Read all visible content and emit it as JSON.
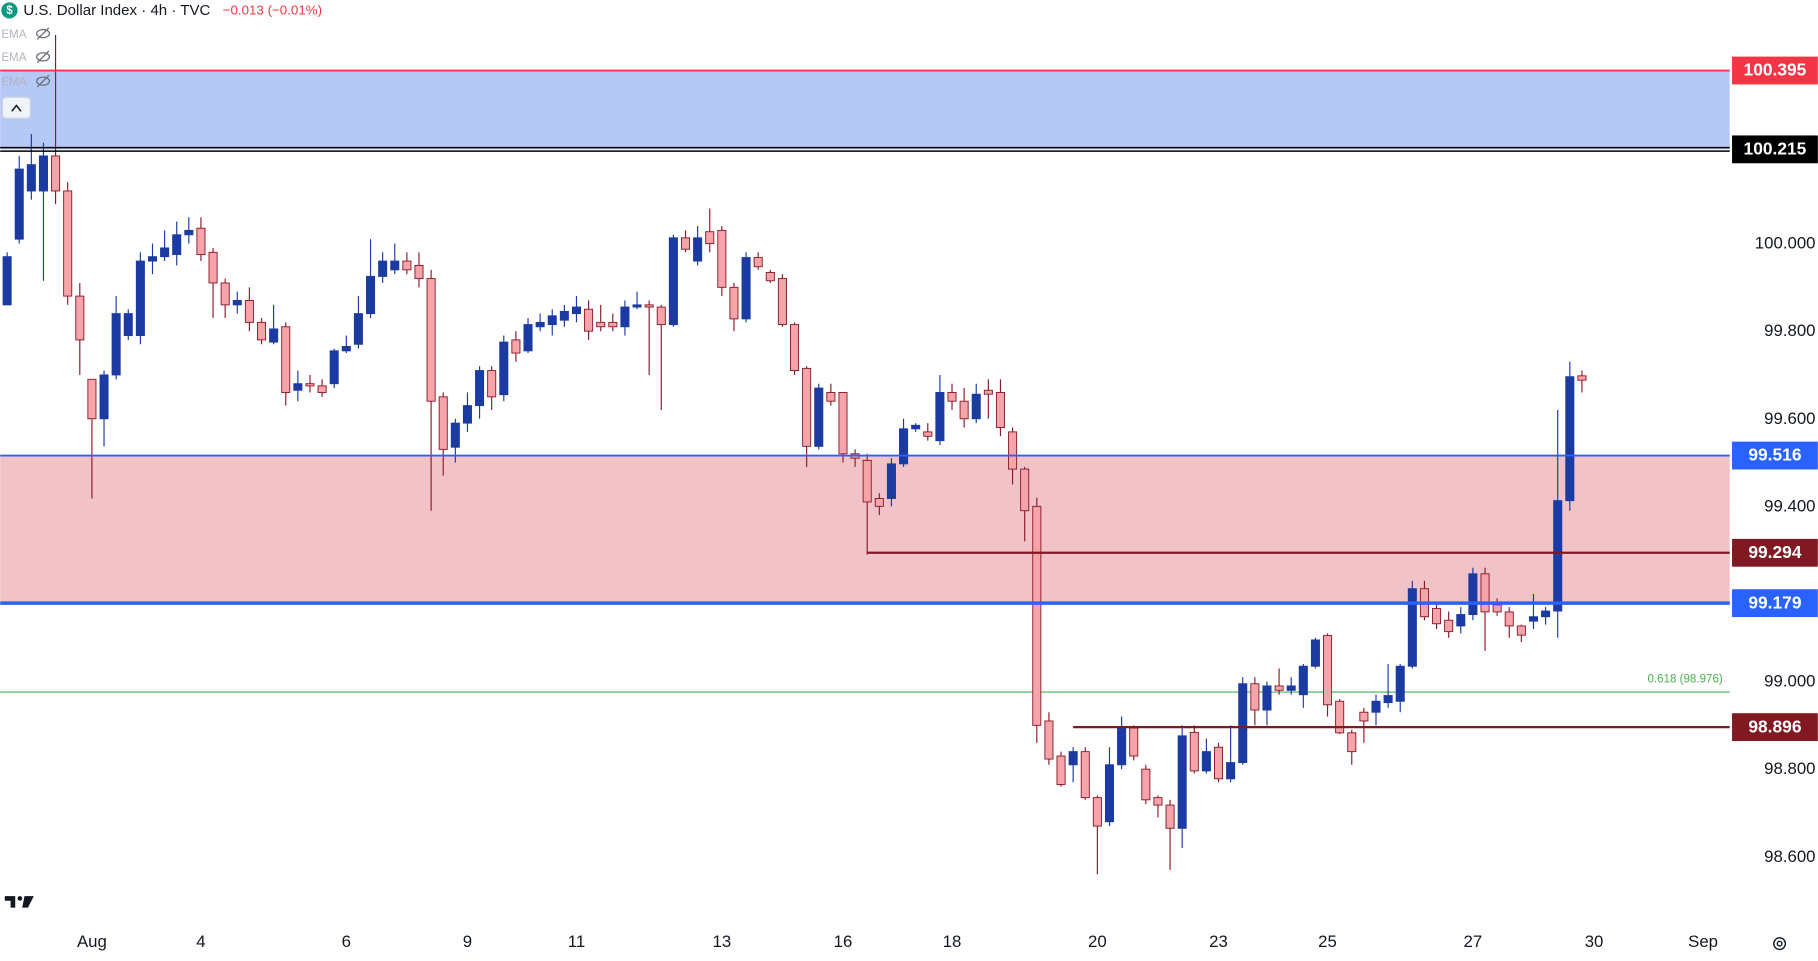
{
  "chart_data": {
    "type": "candlestick",
    "title": "U.S. Dollar Index · 4h · TVC",
    "symbol_icon": "$",
    "change": "−0.013 (−0.01%)",
    "indicators": [
      "EMA",
      "EMA",
      "EMA"
    ],
    "up_color": "#1b3ba3",
    "down_color": "#f5a5aa",
    "down_border": "#8b1a2b",
    "grid": false,
    "ylim": [
      98.452,
      100.556
    ],
    "yticks": [
      {
        "value": 98.6,
        "label": "98.600"
      },
      {
        "value": 98.8,
        "label": "98.800"
      },
      {
        "value": 99.0,
        "label": "99.000"
      },
      {
        "value": 99.4,
        "label": "99.400"
      },
      {
        "value": 99.6,
        "label": "99.600"
      },
      {
        "value": 99.8,
        "label": "99.800"
      },
      {
        "value": 100.0,
        "label": "100.000"
      }
    ],
    "zones": [
      {
        "low": 100.215,
        "high": 100.395,
        "color": "#b1c5f5"
      },
      {
        "low": 99.179,
        "high": 99.516,
        "color": "#f0bfc4"
      }
    ],
    "levels": [
      {
        "value": 100.395,
        "color": "#f23645"
      },
      {
        "value": 100.215,
        "color": "#000000"
      },
      {
        "value": 99.516,
        "color": "#2962ff"
      },
      {
        "value": 99.294,
        "color": "#801922"
      },
      {
        "value": 99.179,
        "color": "#2962ff"
      },
      {
        "value": 98.896,
        "color": "#801922"
      }
    ],
    "fib": {
      "value": 98.976,
      "label": "0.618 (98.976)",
      "color": "#4caf50"
    },
    "categories": [
      null,
      null,
      null,
      null,
      null,
      null,
      null,
      "Aug",
      null,
      null,
      null,
      null,
      null,
      null,
      null,
      null,
      "4",
      null,
      null,
      null,
      null,
      null,
      null,
      null,
      null,
      null,
      null,
      null,
      "6",
      null,
      null,
      null,
      null,
      null,
      null,
      null,
      null,
      null,
      "9",
      null,
      null,
      null,
      null,
      null,
      null,
      null,
      null,
      "11",
      null,
      null,
      null,
      null,
      null,
      null,
      null,
      null,
      null,
      null,
      null,
      "13",
      null,
      null,
      null,
      null,
      null,
      null,
      null,
      null,
      null,
      "16",
      null,
      null,
      null,
      null,
      null,
      null,
      null,
      null,
      "18",
      null,
      null,
      null,
      null,
      null,
      null,
      null,
      null,
      null,
      null,
      null,
      "20",
      null,
      null,
      null,
      null,
      null,
      null,
      null,
      null,
      null,
      "23",
      null,
      null,
      null,
      null,
      null,
      null,
      null,
      null,
      "25",
      null,
      null,
      null,
      null,
      null,
      null,
      null,
      null,
      null,
      null,
      null,
      "27",
      null,
      null,
      null,
      null,
      null,
      null,
      null,
      null,
      null,
      "30",
      null,
      null,
      null,
      null,
      null,
      null,
      null,
      null,
      "Sep"
    ],
    "open": [
      99.86,
      100.01,
      100.12,
      100.12,
      100.2,
      100.12,
      99.88,
      99.69,
      99.6,
      99.7,
      99.79,
      99.79,
      99.96,
      99.97,
      99.975,
      100.02,
      100.035,
      99.98,
      99.91,
      99.86,
      99.87,
      99.82,
      99.775,
      99.81,
      99.665,
      99.68,
      99.675,
      99.68,
      99.755,
      99.77,
      99.84,
      99.925,
      99.94,
      99.96,
      99.95,
      99.92,
      99.65,
      99.535,
      99.59,
      99.63,
      99.71,
      99.655,
      99.78,
      99.755,
      99.81,
      99.815,
      99.825,
      99.84,
      99.85,
      99.82,
      99.82,
      99.81,
      99.855,
      99.86,
      99.855,
      99.815,
      100.013,
      99.96,
      100.027,
      100.03,
      99.9,
      99.828,
      99.968,
      99.934,
      99.92,
      99.815,
      99.715,
      99.537,
      99.66,
      99.66,
      99.52,
      99.505,
      99.418,
      99.418,
      99.497,
      99.577,
      99.57,
      99.55,
      99.66,
      99.64,
      99.6,
      99.665,
      99.66,
      99.57,
      99.485,
      99.4,
      98.91,
      98.83,
      98.81,
      98.84,
      98.735,
      98.68,
      98.81,
      98.894,
      98.8,
      98.735,
      98.718,
      98.665,
      98.884,
      98.796,
      98.85,
      98.778,
      98.815,
      98.995,
      98.935,
      98.99,
      98.98,
      98.97,
      99.035,
      99.105,
      98.955,
      98.883,
      98.93,
      98.93,
      98.952,
      98.955,
      99.035,
      99.212,
      99.167,
      99.14,
      99.127,
      99.153,
      99.246,
      99.175,
      99.159,
      99.127,
      99.138,
      99.148,
      99.161,
      99.413,
      99.698,
      null,
      null,
      null,
      null,
      null,
      null,
      null,
      null,
      null,
      null
    ],
    "high": [
      99.98,
      100.2,
      100.25,
      100.23,
      100.476,
      100.14,
      99.91,
      99.69,
      99.71,
      99.88,
      99.85,
      99.98,
      100.0,
      100.03,
      100.05,
      100.06,
      100.06,
      99.99,
      99.92,
      99.89,
      99.9,
      99.83,
      99.86,
      99.82,
      99.71,
      99.7,
      99.69,
      99.76,
      99.79,
      99.88,
      100.01,
      99.98,
      100.0,
      99.98,
      99.98,
      99.94,
      99.66,
      99.6,
      99.66,
      99.72,
      99.72,
      99.79,
      99.8,
      99.83,
      99.84,
      99.85,
      99.86,
      99.88,
      99.87,
      99.86,
      99.84,
      99.87,
      99.89,
      99.87,
      99.86,
      100.02,
      100.03,
      100.04,
      100.08,
      100.04,
      99.91,
      99.98,
      99.98,
      99.94,
      99.93,
      99.82,
      99.72,
      99.68,
      99.68,
      99.66,
      99.53,
      99.52,
      99.43,
      99.51,
      99.6,
      99.59,
      99.59,
      99.7,
      99.68,
      99.67,
      99.68,
      99.69,
      99.69,
      99.58,
      99.49,
      99.42,
      98.93,
      98.84,
      98.85,
      98.85,
      98.74,
      98.85,
      98.92,
      98.9,
      98.81,
      98.74,
      98.73,
      98.9,
      98.9,
      98.87,
      98.86,
      98.9,
      99.01,
      99.01,
      99.0,
      99.03,
      99.01,
      99.04,
      99.1,
      99.11,
      98.96,
      98.89,
      98.94,
      98.97,
      99.04,
      99.04,
      99.23,
      99.23,
      99.18,
      99.16,
      99.17,
      99.26,
      99.26,
      99.19,
      99.17,
      99.13,
      99.2,
      99.17,
      99.62,
      99.73,
      99.71,
      null,
      null,
      null,
      null,
      null,
      null,
      null,
      null,
      null,
      null
    ],
    "low": [
      99.86,
      100.0,
      100.1,
      99.915,
      100.09,
      99.86,
      99.7,
      99.418,
      99.537,
      99.69,
      99.78,
      99.77,
      99.93,
      99.96,
      99.95,
      100.0,
      99.96,
      99.83,
      99.83,
      99.84,
      99.8,
      99.77,
      99.77,
      99.63,
      99.64,
      99.66,
      99.65,
      99.67,
      99.75,
      99.76,
      99.83,
      99.91,
      99.93,
      99.93,
      99.9,
      99.39,
      99.47,
      99.5,
      99.57,
      99.6,
      99.62,
      99.64,
      99.73,
      99.75,
      99.8,
      99.79,
      99.81,
      99.82,
      99.78,
      99.8,
      99.8,
      99.79,
      99.85,
      99.7,
      99.62,
      99.81,
      99.98,
      99.95,
      99.98,
      99.88,
      99.8,
      99.82,
      99.94,
      99.91,
      99.81,
      99.7,
      99.49,
      99.53,
      99.63,
      99.5,
      99.49,
      99.29,
      99.38,
      99.4,
      99.49,
      99.57,
      99.55,
      99.54,
      99.62,
      99.58,
      99.59,
      99.6,
      99.56,
      99.45,
      99.32,
      98.86,
      98.81,
      98.76,
      98.77,
      98.73,
      98.56,
      98.67,
      98.8,
      98.82,
      98.72,
      98.69,
      98.57,
      98.62,
      98.79,
      98.79,
      98.77,
      98.77,
      98.81,
      98.9,
      98.9,
      98.97,
      98.97,
      98.94,
      99.03,
      98.92,
      98.88,
      98.81,
      98.86,
      98.9,
      98.94,
      98.93,
      99.03,
      99.14,
      99.12,
      99.1,
      99.11,
      99.14,
      99.07,
      99.15,
      99.1,
      99.09,
      99.12,
      99.13,
      99.1,
      99.39,
      99.66,
      null,
      null,
      null,
      null,
      null,
      null,
      null,
      null,
      null,
      null
    ],
    "close": [
      99.97,
      100.17,
      100.18,
      100.2,
      100.12,
      99.88,
      99.78,
      99.6,
      99.7,
      99.84,
      99.84,
      99.96,
      99.97,
      99.99,
      100.02,
      100.03,
      99.975,
      99.91,
      99.86,
      99.87,
      99.82,
      99.78,
      99.805,
      99.66,
      99.68,
      99.675,
      99.66,
      99.755,
      99.765,
      99.84,
      99.925,
      99.96,
      99.96,
      99.94,
      99.92,
      99.64,
      99.53,
      99.59,
      99.63,
      99.71,
      99.65,
      99.775,
      99.75,
      99.815,
      99.82,
      99.835,
      99.845,
      99.855,
      99.8,
      99.81,
      99.81,
      99.855,
      99.86,
      99.855,
      99.815,
      100.013,
      99.987,
      100.013,
      100.0,
      99.9,
      99.828,
      99.968,
      99.947,
      99.915,
      99.815,
      99.71,
      99.537,
      99.67,
      99.64,
      99.52,
      99.51,
      99.41,
      99.4,
      99.497,
      99.577,
      99.585,
      99.56,
      99.66,
      99.64,
      99.6,
      99.656,
      99.656,
      99.58,
      99.485,
      99.39,
      98.9,
      98.823,
      98.765,
      98.84,
      98.735,
      98.67,
      98.81,
      98.894,
      98.83,
      98.73,
      98.718,
      98.665,
      98.876,
      98.796,
      98.84,
      98.778,
      98.815,
      98.995,
      98.935,
      98.99,
      98.98,
      98.99,
      99.035,
      99.095,
      98.947,
      98.883,
      98.84,
      98.91,
      98.955,
      98.968,
      99.035,
      99.212,
      99.148,
      99.132,
      99.114,
      99.153,
      99.246,
      99.159,
      99.159,
      99.127,
      99.106,
      99.148,
      99.161,
      99.413,
      99.696,
      99.688,
      null,
      null,
      null,
      null,
      null,
      null,
      null,
      null,
      null,
      null
    ]
  }
}
